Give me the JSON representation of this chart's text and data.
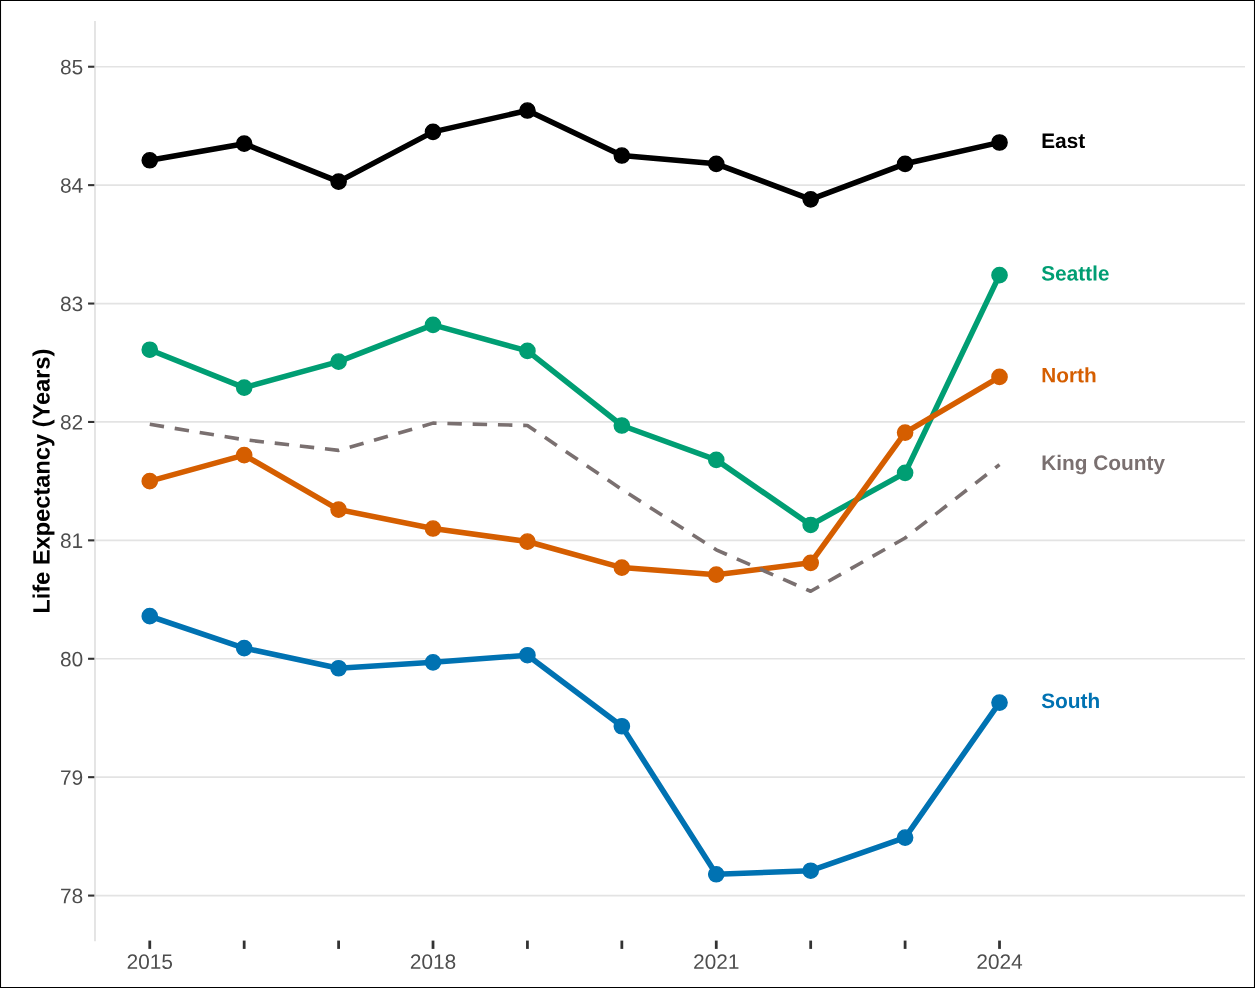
{
  "chart_data": {
    "type": "line",
    "ylabel": "Life Expectancy (Years)",
    "x": [
      2015,
      2016,
      2017,
      2018,
      2019,
      2020,
      2021,
      2022,
      2023,
      2024
    ],
    "series": [
      {
        "name": "East",
        "color": "#000000",
        "values": [
          84.21,
          84.35,
          84.03,
          84.45,
          84.63,
          84.25,
          84.18,
          83.88,
          84.18,
          84.36
        ]
      },
      {
        "name": "Seattle",
        "color": "#009e73",
        "values": [
          82.61,
          82.29,
          82.51,
          82.82,
          82.6,
          81.97,
          81.68,
          81.13,
          81.57,
          83.24
        ]
      },
      {
        "name": "North",
        "color": "#d55e00",
        "values": [
          81.5,
          81.72,
          81.26,
          81.1,
          80.99,
          80.77,
          80.71,
          80.81,
          81.91,
          82.38
        ]
      },
      {
        "name": "King County",
        "color": "#7a7070",
        "line_style": "dashed",
        "marker": "none",
        "values": [
          81.98,
          81.85,
          81.76,
          81.99,
          81.97,
          81.43,
          80.92,
          80.57,
          81.02,
          81.64
        ]
      },
      {
        "name": "South",
        "color": "#0072b2",
        "values": [
          80.36,
          80.09,
          79.92,
          79.97,
          80.03,
          79.43,
          78.18,
          78.21,
          78.49,
          79.63
        ]
      }
    ],
    "marker": "circle",
    "line_style": "solid",
    "grid": "y",
    "legend": false,
    "xlim": [
      2014.42,
      2026.6
    ],
    "ylim": [
      77.62,
      85.38
    ],
    "xticks": [
      2015,
      {
        "value": 2016,
        "label": null
      },
      {
        "value": 2017,
        "label": null
      },
      2018,
      {
        "value": 2019,
        "label": null
      },
      {
        "value": 2020,
        "label": null
      },
      2021,
      {
        "value": 2022,
        "label": null
      },
      {
        "value": 2023,
        "label": null
      },
      2024
    ],
    "yticks": [
      78,
      79,
      80,
      81,
      82,
      83,
      84,
      85
    ]
  }
}
